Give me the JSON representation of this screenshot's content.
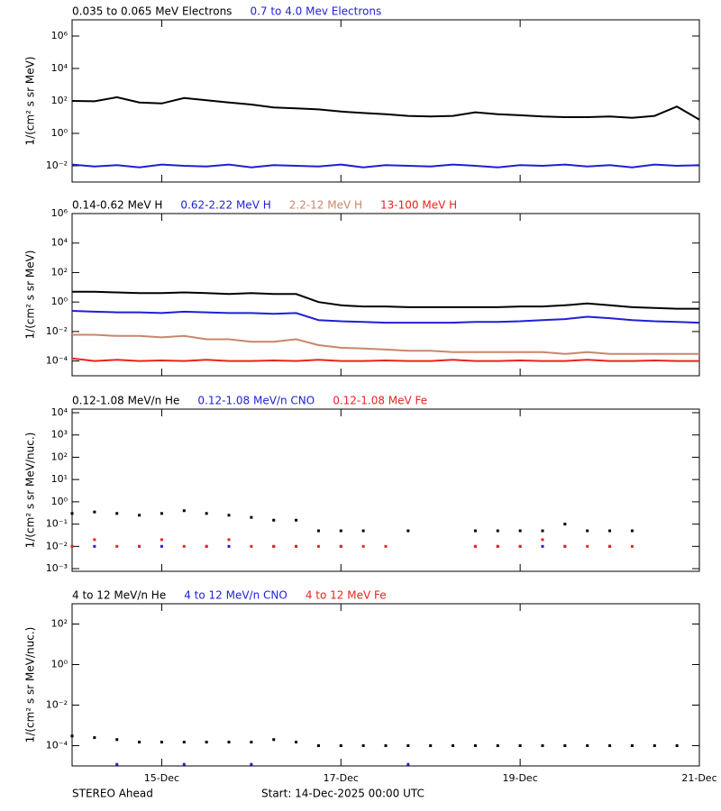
{
  "chart_data": [
    {
      "type": "line",
      "ylabel": "1/(cm² s sr MeV)",
      "log_y": true,
      "x": [
        0,
        0.25,
        0.5,
        0.75,
        1,
        1.25,
        1.5,
        1.75,
        2,
        2.25,
        2.5,
        2.75,
        3,
        3.25,
        3.5,
        3.75,
        4,
        4.25,
        4.5,
        4.75,
        5,
        5.25,
        5.5,
        5.75,
        6,
        6.25,
        6.5,
        6.75,
        7
      ],
      "xlim": [
        0,
        7
      ],
      "ylim": [
        0.001,
        10000000
      ],
      "yticks": [
        {
          "value": 0.01,
          "label": "10⁻²"
        },
        {
          "value": 1,
          "label": "10⁰"
        },
        {
          "value": 100,
          "label": "10²"
        },
        {
          "value": 10000,
          "label": "10⁴"
        },
        {
          "value": 1000000,
          "label": "10⁶"
        }
      ],
      "series": [
        {
          "name": "0.035 to 0.065 MeV Electrons",
          "color": "#000000",
          "values": [
            100,
            95,
            170,
            80,
            70,
            150,
            110,
            80,
            60,
            40,
            35,
            30,
            22,
            18,
            15,
            12,
            11,
            12,
            20,
            15,
            13,
            11,
            10,
            10,
            11,
            9,
            12,
            45,
            7
          ]
        },
        {
          "name": "0.7 to 4.0 Mev Electrons",
          "color": "#1f1fd6",
          "values": [
            0.012,
            0.009,
            0.011,
            0.008,
            0.012,
            0.01,
            0.009,
            0.012,
            0.008,
            0.011,
            0.01,
            0.009,
            0.012,
            0.008,
            0.011,
            0.01,
            0.009,
            0.012,
            0.01,
            0.008,
            0.011,
            0.01,
            0.012,
            0.009,
            0.011,
            0.008,
            0.012,
            0.01,
            0.011
          ]
        }
      ]
    },
    {
      "type": "line",
      "ylabel": "1/(cm² s sr MeV)",
      "log_y": true,
      "x": [
        0,
        0.25,
        0.5,
        0.75,
        1,
        1.25,
        1.5,
        1.75,
        2,
        2.25,
        2.5,
        2.75,
        3,
        3.25,
        3.5,
        3.75,
        4,
        4.25,
        4.5,
        4.75,
        5,
        5.25,
        5.5,
        5.75,
        6,
        6.25,
        6.5,
        6.75,
        7
      ],
      "xlim": [
        0,
        7
      ],
      "ylim": [
        1e-05,
        1000000
      ],
      "yticks": [
        {
          "value": 0.0001,
          "label": "10⁻⁴"
        },
        {
          "value": 0.01,
          "label": "10⁻²"
        },
        {
          "value": 1,
          "label": "10⁰"
        },
        {
          "value": 100,
          "label": "10²"
        },
        {
          "value": 10000,
          "label": "10⁴"
        },
        {
          "value": 1000000,
          "label": "10⁶"
        }
      ],
      "series": [
        {
          "name": "0.14-0.62 MeV H",
          "color": "#000000",
          "values": [
            5,
            5,
            4.5,
            4,
            4,
            4.5,
            4,
            3.5,
            4,
            3.5,
            3.5,
            1,
            0.6,
            0.5,
            0.5,
            0.45,
            0.45,
            0.45,
            0.45,
            0.45,
            0.5,
            0.5,
            0.6,
            0.8,
            0.6,
            0.45,
            0.4,
            0.35,
            0.35
          ]
        },
        {
          "name": "0.62-2.22 MeV H",
          "color": "#1f1fd6",
          "values": [
            0.25,
            0.22,
            0.2,
            0.2,
            0.18,
            0.22,
            0.2,
            0.18,
            0.18,
            0.16,
            0.18,
            0.06,
            0.05,
            0.045,
            0.04,
            0.04,
            0.04,
            0.04,
            0.045,
            0.045,
            0.05,
            0.06,
            0.07,
            0.1,
            0.08,
            0.06,
            0.05,
            0.045,
            0.04
          ]
        },
        {
          "name": "2.2-12 MeV H",
          "color": "#c8876a",
          "values": [
            0.006,
            0.006,
            0.005,
            0.005,
            0.004,
            0.005,
            0.003,
            0.003,
            0.002,
            0.002,
            0.003,
            0.0012,
            0.0008,
            0.0007,
            0.0006,
            0.0005,
            0.0005,
            0.0004,
            0.0004,
            0.0004,
            0.0004,
            0.0004,
            0.0003,
            0.0004,
            0.0003,
            0.0003,
            0.0003,
            0.0003,
            0.0003
          ]
        },
        {
          "name": "13-100 MeV H",
          "color": "#e8231e",
          "values": [
            0.00015,
            0.0001,
            0.00012,
            0.0001,
            0.00011,
            0.0001,
            0.00012,
            0.0001,
            0.0001,
            0.00011,
            0.0001,
            0.00012,
            0.0001,
            0.0001,
            0.00011,
            0.0001,
            0.0001,
            0.00012,
            0.0001,
            0.0001,
            0.00011,
            0.0001,
            0.0001,
            0.00012,
            0.0001,
            0.0001,
            0.00011,
            0.0001,
            0.0001
          ]
        }
      ]
    },
    {
      "type": "scatter",
      "ylabel": "1/(cm² s sr MeV/nuc.)",
      "log_y": true,
      "x": [
        0,
        0.25,
        0.5,
        0.75,
        1,
        1.25,
        1.5,
        1.75,
        2,
        2.25,
        2.5,
        2.75,
        3,
        3.25,
        3.5,
        3.75,
        4,
        4.25,
        4.5,
        4.75,
        5,
        5.25,
        5.5,
        5.75,
        6,
        6.25,
        6.5,
        6.75,
        7
      ],
      "xlim": [
        0,
        7
      ],
      "ylim": [
        0.00076,
        14500
      ],
      "yticks": [
        {
          "value": 0.001,
          "label": "10⁻³"
        },
        {
          "value": 0.01,
          "label": "10⁻²"
        },
        {
          "value": 0.1,
          "label": "10⁻¹"
        },
        {
          "value": 1,
          "label": "10⁰"
        },
        {
          "value": 10,
          "label": "10¹"
        },
        {
          "value": 100,
          "label": "10²"
        },
        {
          "value": 1000,
          "label": "10³"
        },
        {
          "value": 10000,
          "label": "10⁴"
        }
      ],
      "series": [
        {
          "name": "0.12-1.08 MeV/n He",
          "color": "#000000",
          "values": [
            0.3,
            0.35,
            0.3,
            0.25,
            0.3,
            0.4,
            0.3,
            0.25,
            0.2,
            0.15,
            0.15,
            0.05,
            0.05,
            0.05,
            null,
            0.05,
            null,
            null,
            0.05,
            0.05,
            0.05,
            0.05,
            0.1,
            0.05,
            0.05,
            0.05,
            null,
            null,
            null
          ]
        },
        {
          "name": "0.12-1.08 MeV/n CNO",
          "color": "#1f1fd6",
          "values": [
            0.01,
            0.01,
            null,
            0.01,
            0.01,
            null,
            0.01,
            0.01,
            null,
            0.01,
            0.01,
            null,
            0.01,
            null,
            null,
            null,
            null,
            null,
            0.01,
            0.01,
            0.01,
            0.01,
            0.01,
            null,
            0.01,
            null,
            null,
            null,
            null
          ]
        },
        {
          "name": "0.12-1.08 MeV Fe",
          "color": "#e8231e",
          "values": [
            0.01,
            0.02,
            0.01,
            0.01,
            0.02,
            0.01,
            0.01,
            0.02,
            0.01,
            0.01,
            0.01,
            0.01,
            0.01,
            0.01,
            0.01,
            null,
            null,
            null,
            0.01,
            0.01,
            0.01,
            0.02,
            0.01,
            0.01,
            0.01,
            0.01,
            null,
            null,
            null
          ]
        }
      ]
    },
    {
      "type": "scatter",
      "ylabel": "1/(cm² s sr MeV/nuc.)",
      "log_y": true,
      "x": [
        0,
        0.25,
        0.5,
        0.75,
        1,
        1.25,
        1.5,
        1.75,
        2,
        2.25,
        2.5,
        2.75,
        3,
        3.25,
        3.5,
        3.75,
        4,
        4.25,
        4.5,
        4.75,
        5,
        5.25,
        5.5,
        5.75,
        6,
        6.25,
        6.5,
        6.75,
        7
      ],
      "xlim": [
        0,
        7
      ],
      "ylim": [
        1e-05,
        1000
      ],
      "xticks": [
        {
          "value": 1,
          "label": "15-Dec"
        },
        {
          "value": 3,
          "label": "17-Dec"
        },
        {
          "value": 5,
          "label": "19-Dec"
        },
        {
          "value": 7,
          "label": "21-Dec"
        }
      ],
      "yticks": [
        {
          "value": 0.0001,
          "label": "10⁻⁴"
        },
        {
          "value": 0.01,
          "label": "10⁻²"
        },
        {
          "value": 1,
          "label": "10⁰"
        },
        {
          "value": 100,
          "label": "10²"
        }
      ],
      "series": [
        {
          "name": "4 to 12 MeV/n He",
          "color": "#000000",
          "values": [
            0.0003,
            0.00025,
            0.0002,
            0.00015,
            0.00015,
            0.00015,
            0.00015,
            0.00015,
            0.00015,
            0.0002,
            0.00015,
            0.0001,
            0.0001,
            0.0001,
            0.0001,
            0.0001,
            0.0001,
            0.0001,
            0.0001,
            0.0001,
            0.0001,
            0.0001,
            0.0001,
            0.0001,
            0.0001,
            0.0001,
            0.0001,
            0.0001,
            null
          ]
        },
        {
          "name": "4 to 12 MeV/n CNO",
          "color": "#1f1fd6",
          "values": [
            null,
            null,
            1.2e-05,
            null,
            null,
            1.2e-05,
            null,
            null,
            1.2e-05,
            null,
            null,
            null,
            null,
            null,
            null,
            1.2e-05,
            null,
            null,
            null,
            null,
            null,
            null,
            null,
            null,
            null,
            null,
            null,
            null,
            null
          ]
        },
        {
          "name": "4 to 12 MeV Fe",
          "color": "#e8231e",
          "values": [
            null,
            null,
            null,
            null,
            null,
            null,
            null,
            null,
            null,
            null,
            null,
            null,
            null,
            null,
            null,
            null,
            null,
            null,
            null,
            null,
            null,
            null,
            null,
            null,
            null,
            null,
            null,
            null,
            null
          ]
        }
      ]
    }
  ],
  "footer": {
    "left": "STEREO Ahead",
    "center": "Start: 14-Dec-2025 00:00 UTC"
  }
}
